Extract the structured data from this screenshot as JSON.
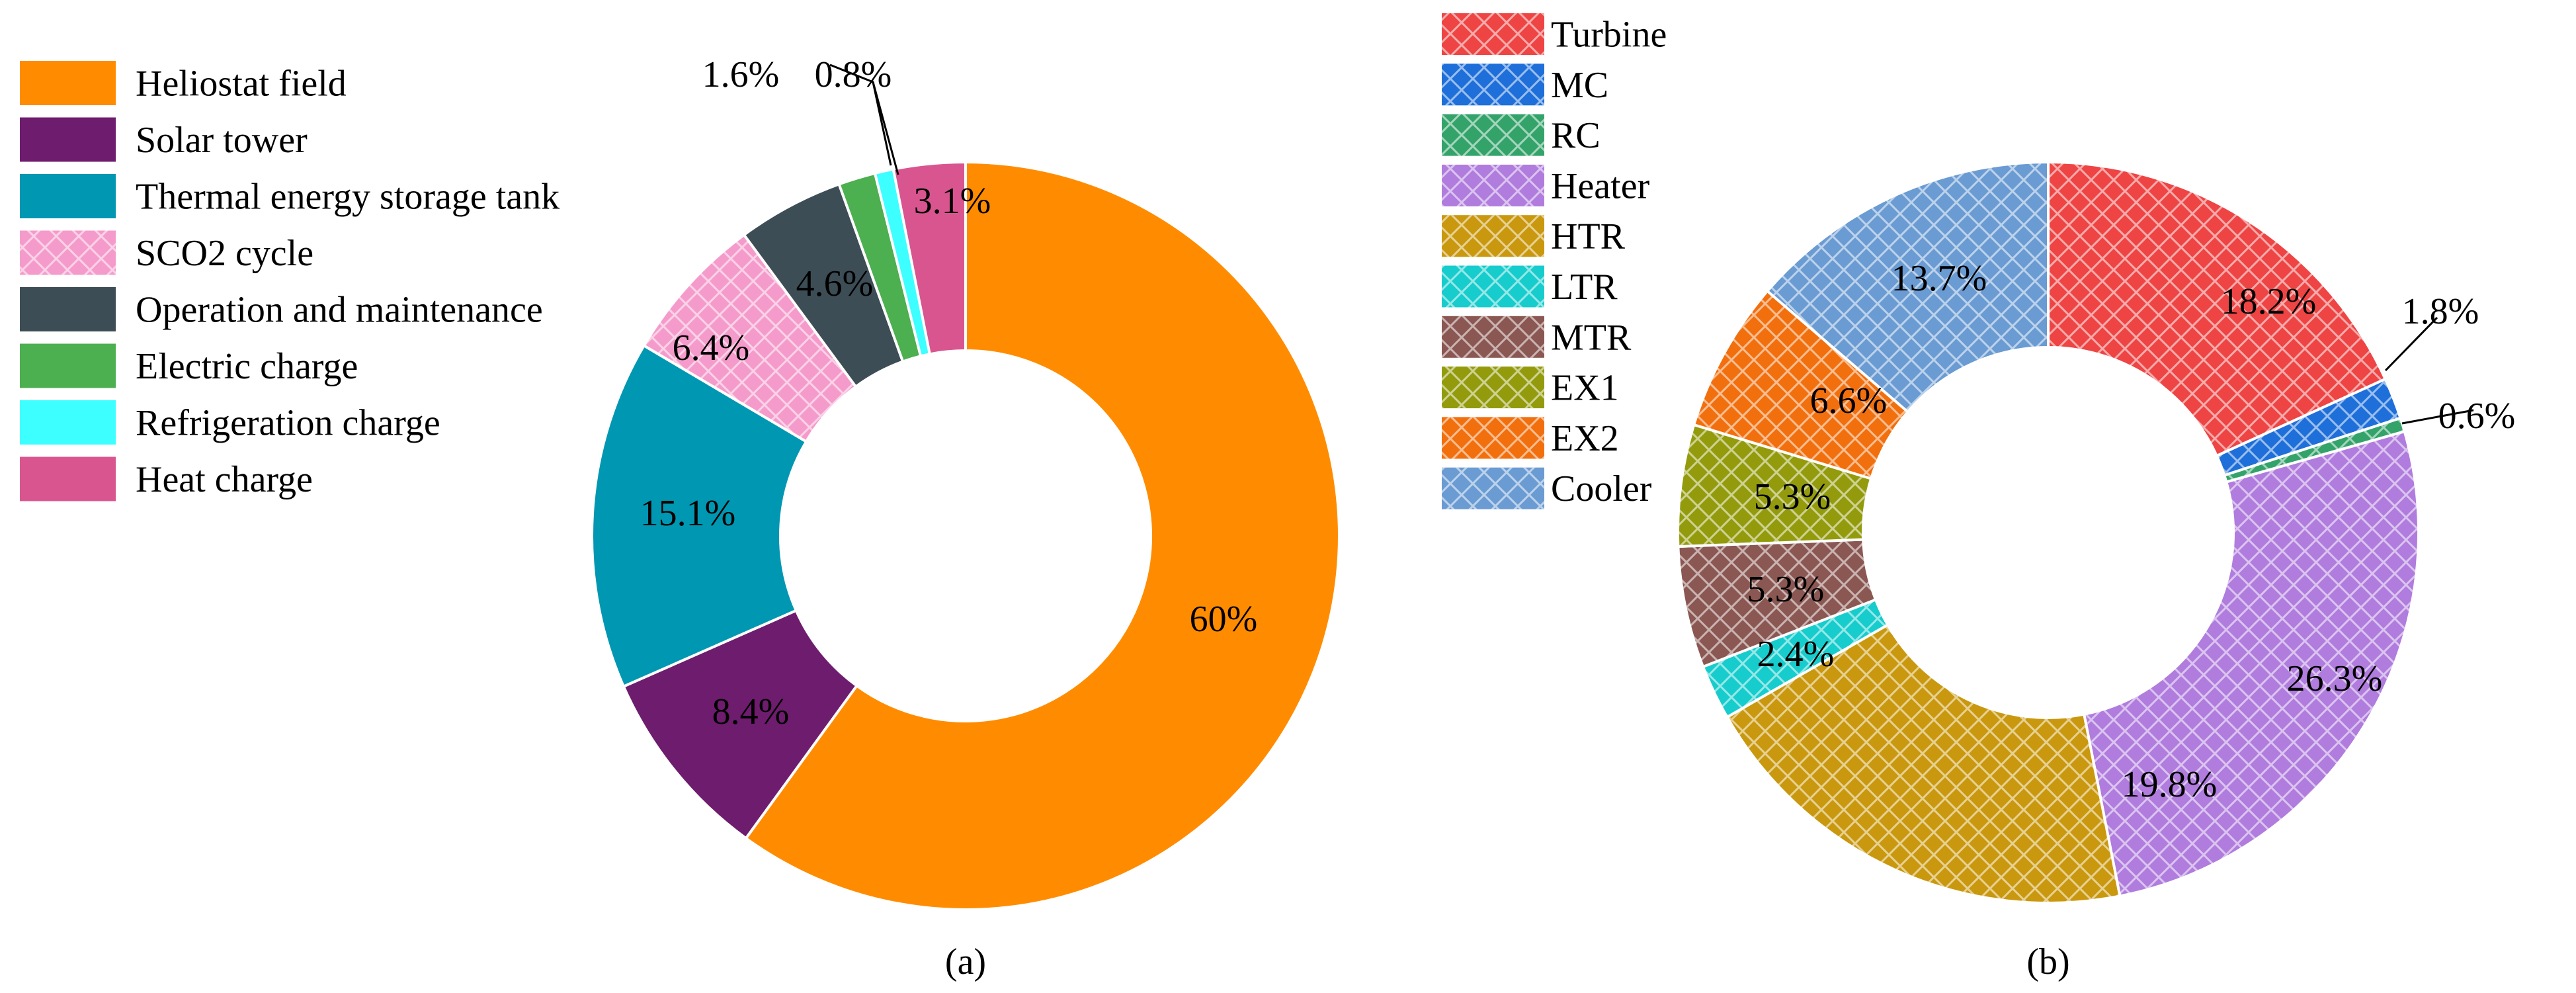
{
  "colors": {
    "a": [
      "#FF8C00",
      "#6E1C6E",
      "#0097B2",
      "#F59BCB",
      "#3D4D56",
      "#4CAF50",
      "#3DFFFF",
      "#D9558F"
    ],
    "b": [
      "#EE4444",
      "#1E6FD9",
      "#33A36A",
      "#B07CDD",
      "#C9980E",
      "#17CCCC",
      "#8A5752",
      "#939B0D",
      "#F26F0E",
      "#6A9BD2"
    ]
  },
  "chart_data": [
    {
      "type": "pie",
      "donut": true,
      "caption": "(a)",
      "legend_position": "top-left",
      "labels": [
        "Heliostat field",
        "Solar tower",
        "Thermal energy storage tank",
        "SCO2 cycle",
        "Operation and maintenance",
        "Electric charge",
        "Refrigeration charge",
        "Heat charge"
      ],
      "values": [
        60,
        8.4,
        15.1,
        6.4,
        4.6,
        1.6,
        0.8,
        3.1
      ],
      "value_labels": [
        "60%",
        "8.4%",
        "15.1%",
        "6.4%",
        "4.6%",
        "1.6%",
        "0.8%",
        "3.1%"
      ],
      "hatched": [
        "SCO2 cycle"
      ]
    },
    {
      "type": "pie",
      "donut": true,
      "caption": "(b)",
      "legend_position": "top-left",
      "labels": [
        "Turbine",
        "MC",
        "RC",
        "Heater",
        "HTR",
        "LTR",
        "MTR",
        "EX1",
        "EX2",
        "Cooler"
      ],
      "values": [
        18.2,
        1.8,
        0.6,
        26.3,
        19.8,
        2.4,
        5.3,
        5.3,
        6.6,
        13.7
      ],
      "value_labels": [
        "18.2%",
        "1.8%",
        "0.6%",
        "26.3%",
        "19.8%",
        "2.4%",
        "5.3%",
        "5.3%",
        "6.6%",
        "13.7%"
      ],
      "hatched": [
        "Turbine",
        "MC",
        "RC",
        "Heater",
        "HTR",
        "LTR",
        "MTR",
        "EX1",
        "EX2",
        "Cooler"
      ]
    }
  ]
}
